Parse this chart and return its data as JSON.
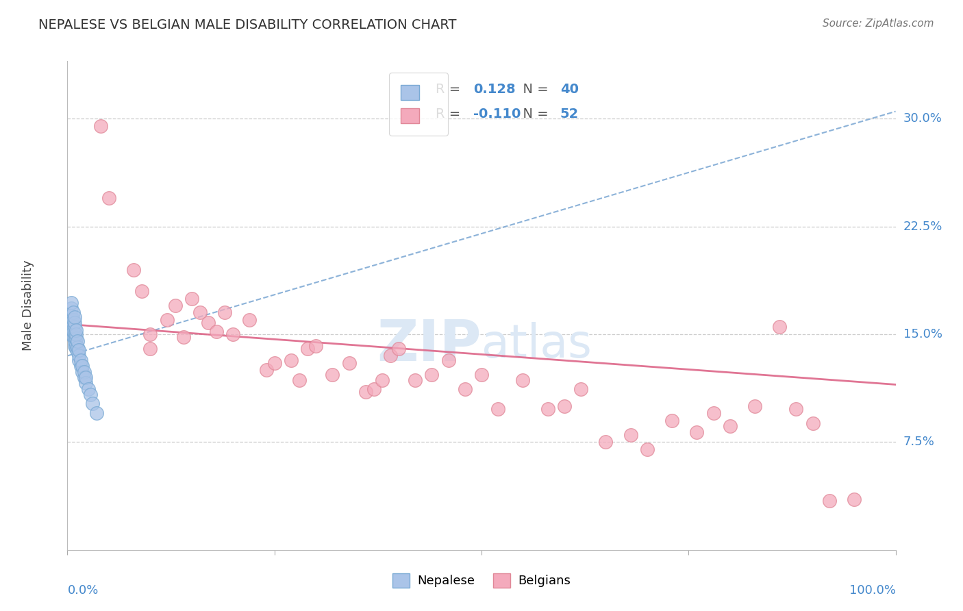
{
  "title": "NEPALESE VS BELGIAN MALE DISABILITY CORRELATION CHART",
  "source": "Source: ZipAtlas.com",
  "ylabel": "Male Disability",
  "ytick_labels": [
    "7.5%",
    "15.0%",
    "22.5%",
    "30.0%"
  ],
  "ytick_values": [
    0.075,
    0.15,
    0.225,
    0.3
  ],
  "xlim": [
    0.0,
    1.0
  ],
  "ylim": [
    0.0,
    0.34
  ],
  "nepalese_R": 0.128,
  "nepalese_N": 40,
  "belgian_R": -0.11,
  "belgian_N": 52,
  "nepalese_color": "#aac4e8",
  "nepalese_edge": "#7aaad4",
  "belgian_color": "#f4aabc",
  "belgian_edge": "#e08898",
  "nepalese_line_color": "#6699cc",
  "belgian_line_color": "#dd6688",
  "watermark_zip": "ZIP",
  "watermark_atlas": "atlas",
  "nepalese_x": [
    0.005,
    0.005,
    0.005,
    0.005,
    0.005,
    0.007,
    0.007,
    0.007,
    0.007,
    0.007,
    0.009,
    0.009,
    0.009,
    0.009,
    0.009,
    0.009,
    0.009,
    0.01,
    0.01,
    0.01,
    0.01,
    0.01,
    0.012,
    0.012,
    0.012,
    0.014,
    0.014,
    0.014,
    0.016,
    0.016,
    0.018,
    0.018,
    0.02,
    0.02,
    0.022,
    0.022,
    0.025,
    0.028,
    0.03,
    0.035
  ],
  "nepalese_y": [
    0.155,
    0.16,
    0.163,
    0.168,
    0.172,
    0.148,
    0.152,
    0.157,
    0.16,
    0.165,
    0.142,
    0.145,
    0.148,
    0.151,
    0.155,
    0.158,
    0.162,
    0.14,
    0.143,
    0.147,
    0.15,
    0.153,
    0.138,
    0.141,
    0.145,
    0.132,
    0.135,
    0.139,
    0.128,
    0.132,
    0.124,
    0.128,
    0.12,
    0.124,
    0.116,
    0.12,
    0.112,
    0.108,
    0.102,
    0.095
  ],
  "belgian_x": [
    0.04,
    0.05,
    0.08,
    0.09,
    0.1,
    0.1,
    0.12,
    0.13,
    0.14,
    0.15,
    0.16,
    0.17,
    0.18,
    0.19,
    0.2,
    0.22,
    0.24,
    0.25,
    0.27,
    0.28,
    0.29,
    0.3,
    0.32,
    0.34,
    0.36,
    0.37,
    0.38,
    0.39,
    0.4,
    0.42,
    0.44,
    0.46,
    0.48,
    0.5,
    0.52,
    0.55,
    0.58,
    0.6,
    0.62,
    0.65,
    0.68,
    0.7,
    0.73,
    0.76,
    0.78,
    0.8,
    0.83,
    0.86,
    0.88,
    0.9,
    0.92,
    0.95
  ],
  "belgian_y": [
    0.295,
    0.245,
    0.195,
    0.18,
    0.15,
    0.14,
    0.16,
    0.17,
    0.148,
    0.175,
    0.165,
    0.158,
    0.152,
    0.165,
    0.15,
    0.16,
    0.125,
    0.13,
    0.132,
    0.118,
    0.14,
    0.142,
    0.122,
    0.13,
    0.11,
    0.112,
    0.118,
    0.135,
    0.14,
    0.118,
    0.122,
    0.132,
    0.112,
    0.122,
    0.098,
    0.118,
    0.098,
    0.1,
    0.112,
    0.075,
    0.08,
    0.07,
    0.09,
    0.082,
    0.095,
    0.086,
    0.1,
    0.155,
    0.098,
    0.088,
    0.034,
    0.035
  ]
}
